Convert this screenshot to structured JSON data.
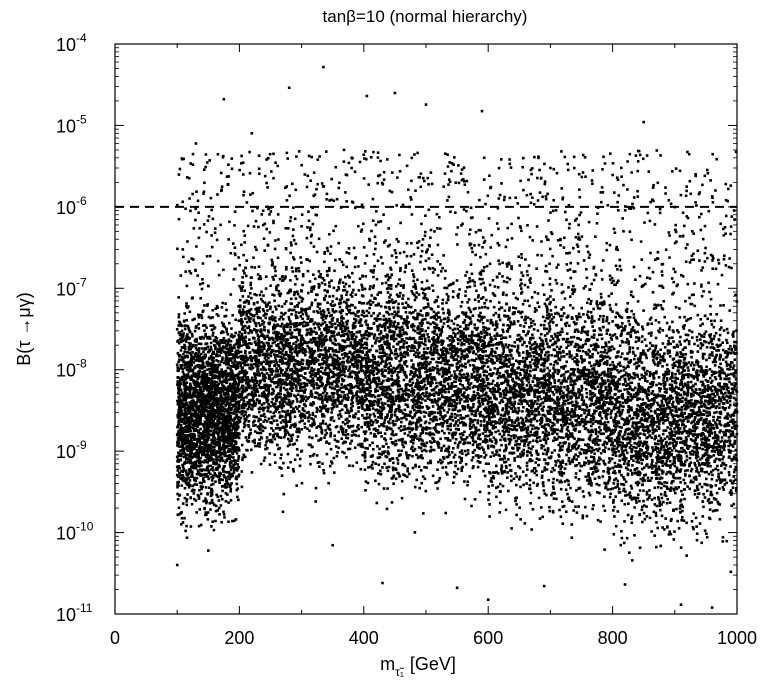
{
  "chart_data": {
    "type": "scatter",
    "title": "tanβ=10 (normal hierarchy)",
    "xlabel": {
      "main": "m",
      "subscript": "τ̃₁",
      "unit": "[GeV]"
    },
    "ylabel": "B(τ →μγ)",
    "xlim": [
      0,
      1000
    ],
    "ylim": [
      1e-11,
      0.0001
    ],
    "yscale": "log",
    "grid": false,
    "legend": "none",
    "x_ticks": [
      "0",
      "200",
      "400",
      "600",
      "800",
      "1000"
    ],
    "y_ticks": [
      {
        "base": "10",
        "exp": "-4"
      },
      {
        "base": "10",
        "exp": "-5"
      },
      {
        "base": "10",
        "exp": "-6"
      },
      {
        "base": "10",
        "exp": "-7"
      },
      {
        "base": "10",
        "exp": "-8"
      },
      {
        "base": "10",
        "exp": "-9"
      },
      {
        "base": "10",
        "exp": "-10"
      },
      {
        "base": "10",
        "exp": "-11"
      }
    ],
    "reference_line": {
      "y": 1e-06,
      "style": "dashed"
    },
    "sample_points": [
      [
        335,
        5.2e-05
      ],
      [
        280,
        2.9e-05
      ],
      [
        450,
        2.5e-05
      ],
      [
        175,
        2.1e-05
      ],
      [
        405,
        2.3e-05
      ],
      [
        500,
        1.8e-05
      ],
      [
        590,
        1.5e-05
      ],
      [
        850,
        1.1e-05
      ],
      [
        220,
        8e-06
      ],
      [
        130,
        6e-06
      ],
      [
        700,
        3e-06
      ],
      [
        940,
        1.5e-06
      ],
      [
        100,
        4e-11
      ],
      [
        115,
        1.2e-10
      ],
      [
        350,
        7e-11
      ],
      [
        430,
        2.4e-11
      ],
      [
        550,
        2.1e-11
      ],
      [
        600,
        1.5e-11
      ],
      [
        690,
        2.2e-11
      ],
      [
        820,
        2.3e-11
      ],
      [
        910,
        1.3e-11
      ],
      [
        960,
        1.2e-11
      ],
      [
        990,
        3.3e-11
      ],
      [
        270,
        1.8e-10
      ],
      [
        150,
        6e-11
      ]
    ],
    "density_bands": [
      {
        "x0": 100,
        "x1": 200,
        "ymin_exp": -10.2,
        "ymax_exp": -6.8
      },
      {
        "x0": 200,
        "x1": 400,
        "ymin_exp": -9.6,
        "ymax_exp": -6.3
      },
      {
        "x0": 400,
        "x1": 600,
        "ymin_exp": -9.9,
        "ymax_exp": -6.3
      },
      {
        "x0": 600,
        "x1": 800,
        "ymin_exp": -10.2,
        "ymax_exp": -6.4
      },
      {
        "x0": 800,
        "x1": 1000,
        "ymin_exp": -10.5,
        "ymax_exp": -6.6
      }
    ],
    "sparse_region": {
      "ymax_exp": -5.3
    }
  },
  "colors": {
    "marker": "#000000",
    "axis": "#000000",
    "background": "#ffffff"
  }
}
